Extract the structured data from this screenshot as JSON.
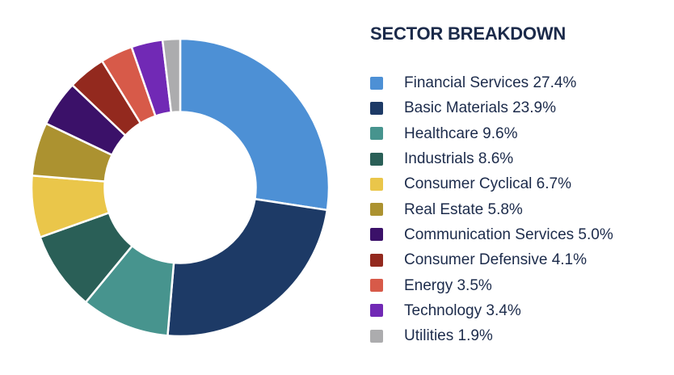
{
  "chart_data": {
    "type": "pie",
    "subtype": "donut",
    "title": "SECTOR BREAKDOWN",
    "legend_position": "right",
    "start_angle_deg": -90,
    "direction": "clockwise",
    "inner_radius_ratio": 0.5,
    "gap_color": "#ffffff",
    "text_color": "#1C2B4B",
    "series": [
      {
        "label": "Financial Services",
        "value": 27.4,
        "color": "#4D90D5"
      },
      {
        "label": "Basic Materials",
        "value": 23.9,
        "color": "#1D3A66"
      },
      {
        "label": "Healthcare",
        "value": 9.6,
        "color": "#47948E"
      },
      {
        "label": "Industrials",
        "value": 8.6,
        "color": "#2A5F57"
      },
      {
        "label": "Consumer Cyclical",
        "value": 6.7,
        "color": "#EAC64A"
      },
      {
        "label": "Real Estate",
        "value": 5.8,
        "color": "#AC9230"
      },
      {
        "label": "Communication Services",
        "value": 5.0,
        "color": "#3B1169"
      },
      {
        "label": "Consumer Defensive",
        "value": 4.1,
        "color": "#93291E"
      },
      {
        "label": "Energy",
        "value": 3.5,
        "color": "#D75A49"
      },
      {
        "label": "Technology",
        "value": 3.4,
        "color": "#7129B5"
      },
      {
        "label": "Utilities",
        "value": 1.9,
        "color": "#ACACAE"
      }
    ]
  }
}
